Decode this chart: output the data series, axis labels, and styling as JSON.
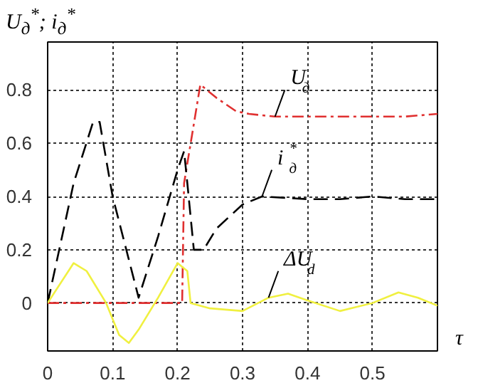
{
  "chart_data": {
    "type": "line",
    "ylabel": "U$_{д}$$^{*}$; i$_{д}$$^{*}$",
    "xlabel": "τ",
    "xlim": [
      0,
      0.6
    ],
    "ylim": [
      -0.18,
      0.98
    ],
    "xticks": [
      0,
      0.1,
      0.2,
      0.3,
      0.4,
      0.5
    ],
    "yticks": [
      0,
      0.2,
      0.4,
      0.6,
      0.8
    ],
    "grid": true,
    "series": [
      {
        "name": "U$_{д}$",
        "color": "#e03030",
        "line_style": "dashdot",
        "x": [
          0,
          0.207,
          0.21,
          0.235,
          0.26,
          0.29,
          0.31,
          0.35,
          0.4,
          0.45,
          0.5,
          0.55,
          0.6
        ],
        "values": [
          0,
          0,
          0.45,
          0.82,
          0.77,
          0.72,
          0.71,
          0.7,
          0.7,
          0.7,
          0.7,
          0.7,
          0.71
        ]
      },
      {
        "name": "i$_{д}$$^{*}$",
        "color": "#000000",
        "line_style": "dashed",
        "x": [
          0,
          0.04,
          0.07,
          0.08,
          0.1,
          0.14,
          0.17,
          0.2,
          0.21,
          0.215,
          0.225,
          0.24,
          0.26,
          0.3,
          0.33,
          0.4,
          0.45,
          0.5,
          0.55,
          0.6
        ],
        "values": [
          0,
          0.45,
          0.68,
          0.68,
          0.4,
          0.02,
          0.25,
          0.5,
          0.57,
          0.45,
          0.2,
          0.2,
          0.28,
          0.37,
          0.4,
          0.39,
          0.39,
          0.4,
          0.39,
          0.39
        ]
      },
      {
        "name": "ΔU$_{d}$",
        "color": "#f0f040",
        "line_style": "solid",
        "x": [
          0,
          0.04,
          0.06,
          0.09,
          0.11,
          0.125,
          0.14,
          0.15,
          0.17,
          0.2,
          0.215,
          0.22,
          0.25,
          0.3,
          0.34,
          0.37,
          0.4,
          0.45,
          0.5,
          0.54,
          0.57,
          0.6
        ],
        "values": [
          0,
          0.15,
          0.12,
          0,
          -0.12,
          -0.15,
          -0.1,
          -0.06,
          0.02,
          0.15,
          0.12,
          0,
          -0.02,
          -0.03,
          0.02,
          0.035,
          0.01,
          -0.03,
          0,
          0.04,
          0.02,
          -0.01
        ]
      }
    ]
  }
}
